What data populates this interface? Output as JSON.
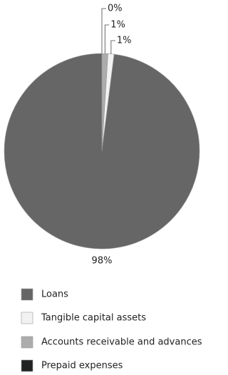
{
  "chart_data": {
    "type": "pie",
    "categories": [
      "Loans",
      "Tangible capital assets",
      "Accounts receivable and advances",
      "Prepaid expenses"
    ],
    "values": [
      98,
      1,
      1,
      0
    ],
    "value_labels": [
      "98%",
      "1%",
      "1%",
      "0%"
    ],
    "colors": [
      "#666666",
      "#f2f2f2",
      "#acacac",
      "#222222"
    ],
    "legend": "bottom"
  }
}
